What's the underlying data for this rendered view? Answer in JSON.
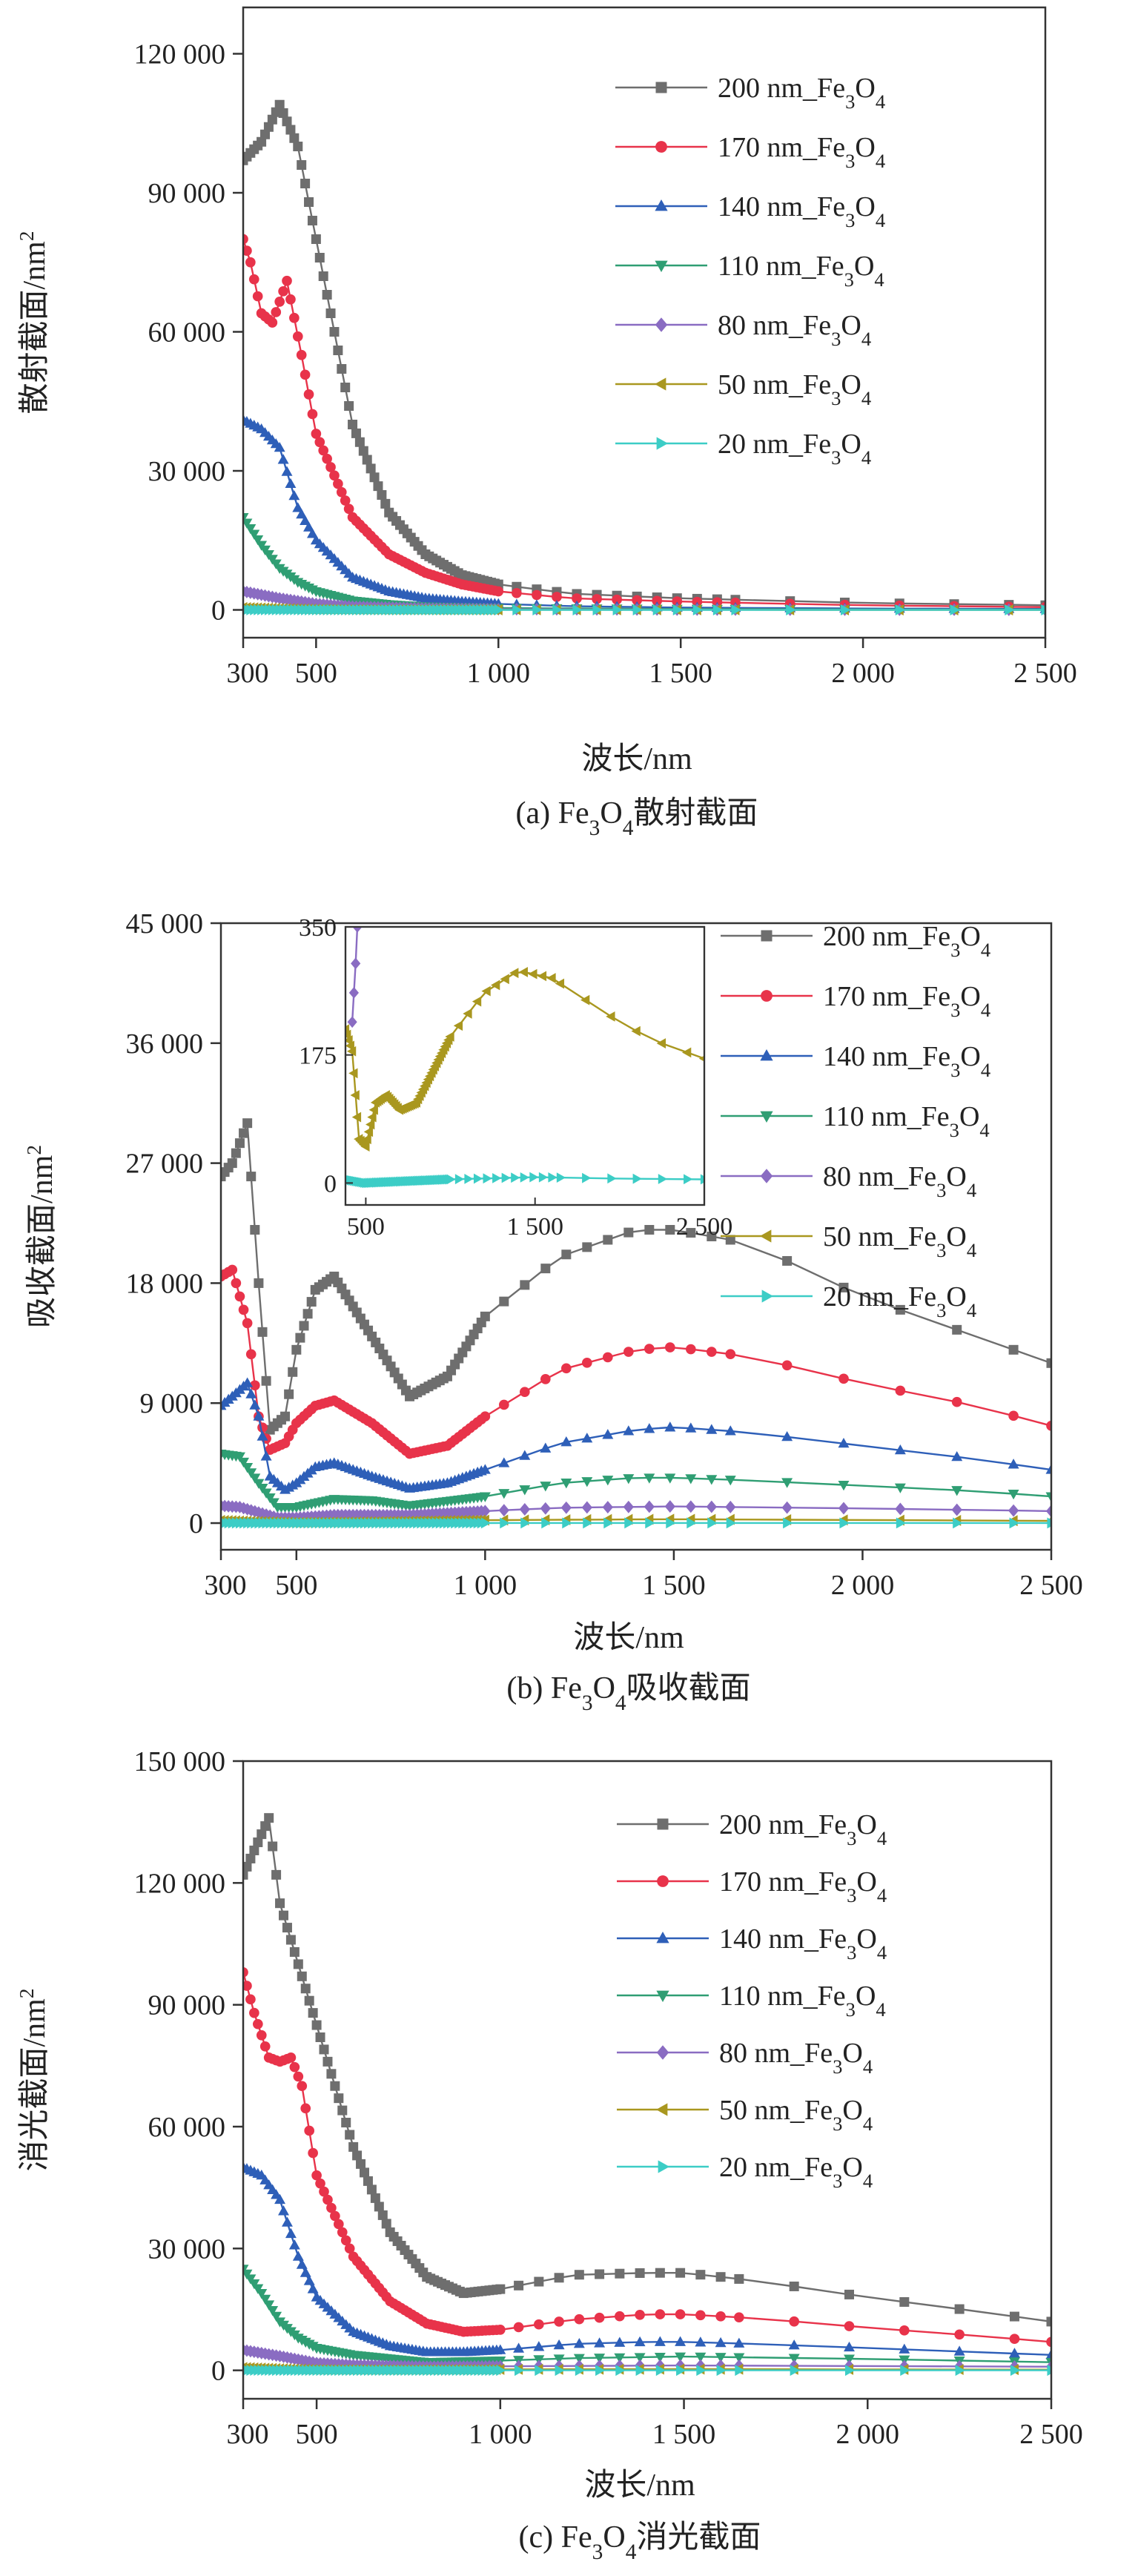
{
  "colors": {
    "200": "#6e6e6e",
    "170": "#e8334a",
    "140": "#2e5fb8",
    "110": "#2f9e73",
    "80": "#8a6cc2",
    "50": "#a9971f",
    "20": "#3ccdc6"
  },
  "legend": [
    {
      "key": "200",
      "label": "200 nm_Fe",
      "sub1": "3",
      "mid": "O",
      "sub2": "4",
      "marker": "square"
    },
    {
      "key": "170",
      "label": "170 nm_Fe",
      "sub1": "3",
      "mid": "O",
      "sub2": "4",
      "marker": "circle"
    },
    {
      "key": "140",
      "label": "140 nm_Fe",
      "sub1": "3",
      "mid": "O",
      "sub2": "4",
      "marker": "triangle-up"
    },
    {
      "key": "110",
      "label": "110 nm_Fe",
      "sub1": "3",
      "mid": "O",
      "sub2": "4",
      "marker": "triangle-down"
    },
    {
      "key": "80",
      "label": "80 nm_Fe",
      "sub1": "3",
      "mid": "O",
      "sub2": "4",
      "marker": "diamond"
    },
    {
      "key": "50",
      "label": "50 nm_Fe",
      "sub1": "3",
      "mid": "O",
      "sub2": "4",
      "marker": "triangle-left"
    },
    {
      "key": "20",
      "label": "20 nm_Fe",
      "sub1": "3",
      "mid": "O",
      "sub2": "4",
      "marker": "triangle-right"
    }
  ],
  "chart_data": [
    {
      "id": "a",
      "type": "line",
      "caption_prefix": "(a) Fe",
      "caption_sub1": "3",
      "caption_mid": "O",
      "caption_sub2": "4",
      "caption_suffix": "散射截面",
      "xlabel": "波长/nm",
      "ylabel": "散射截面/nm",
      "ylabel_sup": "2",
      "xlim": [
        300,
        2500
      ],
      "ylim": [
        -6000,
        130000
      ],
      "xticks": [
        300,
        500,
        1000,
        1500,
        2000,
        2500
      ],
      "xtick_labels": [
        "300",
        "500",
        "1 000",
        "1 500",
        "2 000",
        "2 500"
      ],
      "yticks": [
        0,
        30000,
        60000,
        90000,
        120000
      ],
      "ytick_labels": [
        "0",
        "30 000",
        "60 000",
        "90 000",
        "120 000"
      ],
      "series": [
        {
          "name": "200 nm_Fe3O4",
          "key": "200",
          "x": [
            300,
            350,
            400,
            450,
            500,
            600,
            700,
            800,
            900,
            1000,
            1200,
            1500,
            2000,
            2500
          ],
          "y": [
            97000,
            101000,
            109000,
            100000,
            80000,
            40000,
            21000,
            12000,
            7500,
            5500,
            3500,
            2500,
            1500,
            1000
          ]
        },
        {
          "name": "170 nm_Fe3O4",
          "key": "170",
          "x": [
            300,
            320,
            350,
            380,
            420,
            460,
            500,
            600,
            700,
            800,
            900,
            1000,
            1200,
            1500,
            2000,
            2500
          ],
          "y": [
            80000,
            75000,
            64000,
            62000,
            71000,
            55000,
            38000,
            20000,
            12000,
            8000,
            5500,
            4000,
            2500,
            1800,
            1000,
            600
          ]
        },
        {
          "name": "140 nm_Fe3O4",
          "key": "140",
          "x": [
            300,
            350,
            400,
            450,
            500,
            600,
            700,
            800,
            900,
            1000,
            1200,
            1500,
            2000,
            2500
          ],
          "y": [
            41000,
            39000,
            35000,
            22000,
            15000,
            7000,
            4000,
            2500,
            1800,
            1300,
            800,
            500,
            300,
            200
          ]
        },
        {
          "name": "110 nm_Fe3O4",
          "key": "110",
          "x": [
            300,
            350,
            400,
            450,
            500,
            600,
            700,
            800,
            1000,
            1500,
            2000,
            2500
          ],
          "y": [
            20000,
            14000,
            9000,
            6000,
            4000,
            2000,
            1200,
            700,
            400,
            200,
            100,
            80
          ]
        },
        {
          "name": "80 nm_Fe3O4",
          "key": "80",
          "x": [
            300,
            400,
            500,
            600,
            800,
            1000,
            1500,
            2000,
            2500
          ],
          "y": [
            4000,
            2500,
            1300,
            700,
            300,
            150,
            60,
            30,
            20
          ]
        },
        {
          "name": "50 nm_Fe3O4",
          "key": "50",
          "x": [
            300,
            400,
            500,
            700,
            1000,
            1500,
            2000,
            2500
          ],
          "y": [
            500,
            300,
            150,
            60,
            25,
            10,
            5,
            3
          ]
        },
        {
          "name": "20 nm_Fe3O4",
          "key": "20",
          "x": [
            300,
            500,
            1000,
            1500,
            2000,
            2500
          ],
          "y": [
            10,
            5,
            1,
            0,
            0,
            0
          ]
        }
      ]
    },
    {
      "id": "b",
      "type": "line",
      "caption_prefix": "(b) Fe",
      "caption_sub1": "3",
      "caption_mid": "O",
      "caption_sub2": "4",
      "caption_suffix": "吸收截面",
      "xlabel": "波长/nm",
      "ylabel": "吸收截面/nm",
      "ylabel_sup": "2",
      "xlim": [
        300,
        2500
      ],
      "ylim": [
        -2000,
        45000
      ],
      "xticks": [
        300,
        500,
        1000,
        1500,
        2000,
        2500
      ],
      "xtick_labels": [
        "300",
        "500",
        "1 000",
        "1 500",
        "2 000",
        "2 500"
      ],
      "yticks": [
        0,
        9000,
        18000,
        27000,
        36000,
        45000
      ],
      "ytick_labels": [
        "0",
        "9 000",
        "18 000",
        "27 000",
        "36 000",
        "45 000"
      ],
      "inset": {
        "xlim": [
          380,
          2500
        ],
        "ylim": [
          -30,
          350
        ],
        "xticks": [
          500,
          1500,
          2500
        ],
        "xtick_labels": [
          "500",
          "1 500",
          "2 500"
        ],
        "yticks": [
          0,
          175,
          350
        ],
        "ytick_labels": [
          "0",
          "175",
          "350"
        ],
        "series": [
          {
            "key": "50",
            "x": [
              380,
              420,
              460,
              500,
              560,
              620,
              700,
              800,
              1000,
              1200,
              1400,
              1600,
              1800,
              2000,
              2200,
              2500
            ],
            "y": [
              210,
              180,
              60,
              50,
              110,
              120,
              100,
              110,
              200,
              260,
              290,
              280,
              250,
              220,
              195,
              170
            ]
          },
          {
            "key": "20",
            "x": [
              380,
              500,
              700,
              1000,
              1500,
              2000,
              2500
            ],
            "y": [
              5,
              0,
              2,
              5,
              8,
              6,
              5
            ]
          },
          {
            "key": "80",
            "x": [
              420,
              440,
              460
            ],
            "y": [
              220,
              300,
              400
            ]
          },
          {
            "key": "200",
            "x": [
              440,
              450
            ],
            "y": [
              360,
              420
            ]
          }
        ]
      },
      "series": [
        {
          "name": "200 nm_Fe3O4",
          "key": "200",
          "x": [
            300,
            330,
            370,
            400,
            430,
            470,
            500,
            550,
            600,
            700,
            800,
            900,
            1000,
            1200,
            1400,
            1500,
            1700,
            2000,
            2300,
            2500
          ],
          "y": [
            26000,
            27000,
            30000,
            18000,
            7000,
            8000,
            13000,
            17500,
            18500,
            14000,
            9500,
            11000,
            15500,
            20000,
            22000,
            22000,
            21000,
            17000,
            14000,
            12000
          ]
        },
        {
          "name": "170 nm_Fe3O4",
          "key": "170",
          "x": [
            300,
            330,
            370,
            400,
            430,
            470,
            500,
            550,
            600,
            700,
            800,
            900,
            1000,
            1200,
            1400,
            1500,
            1700,
            2000,
            2300,
            2500
          ],
          "y": [
            18500,
            19000,
            15000,
            8000,
            5500,
            6000,
            7500,
            8800,
            9200,
            7500,
            5200,
            5800,
            8000,
            11500,
            13000,
            13200,
            12500,
            10500,
            8800,
            7300
          ]
        },
        {
          "name": "140 nm_Fe3O4",
          "key": "140",
          "x": [
            300,
            330,
            370,
            400,
            430,
            470,
            500,
            550,
            600,
            700,
            800,
            900,
            1000,
            1200,
            1400,
            1500,
            1700,
            2000,
            2300,
            2500
          ],
          "y": [
            8800,
            9500,
            10500,
            8000,
            3500,
            2500,
            3000,
            4200,
            4500,
            3500,
            2600,
            3000,
            4000,
            6000,
            7000,
            7200,
            6800,
            5800,
            4800,
            4000
          ]
        },
        {
          "name": "110 nm_Fe3O4",
          "key": "110",
          "x": [
            300,
            350,
            400,
            450,
            500,
            600,
            700,
            800,
            1000,
            1200,
            1400,
            1500,
            1700,
            2000,
            2300,
            2500
          ],
          "y": [
            5200,
            5000,
            3000,
            1200,
            1200,
            1800,
            1700,
            1300,
            2000,
            3000,
            3400,
            3400,
            3200,
            2800,
            2400,
            2000
          ]
        },
        {
          "name": "80 nm_Fe3O4",
          "key": "80",
          "x": [
            300,
            350,
            400,
            450,
            500,
            600,
            800,
            1000,
            1200,
            1500,
            2000,
            2500
          ],
          "y": [
            1300,
            1200,
            800,
            400,
            400,
            600,
            600,
            900,
            1150,
            1250,
            1100,
            900
          ]
        },
        {
          "name": "50 nm_Fe3O4",
          "key": "50",
          "x": [
            300,
            400,
            500,
            700,
            1000,
            1500,
            2000,
            2500
          ],
          "y": [
            200,
            120,
            60,
            100,
            220,
            290,
            230,
            170
          ]
        },
        {
          "name": "20 nm_Fe3O4",
          "key": "20",
          "x": [
            300,
            500,
            1000,
            1500,
            2000,
            2500
          ],
          "y": [
            5,
            2,
            5,
            8,
            6,
            5
          ]
        }
      ]
    },
    {
      "id": "c",
      "type": "line",
      "caption_prefix": "(c) Fe",
      "caption_sub1": "3",
      "caption_mid": "O",
      "caption_sub2": "4",
      "caption_suffix": "消光截面",
      "xlabel": "波长/nm",
      "ylabel": "消光截面/nm",
      "ylabel_sup": "2",
      "xlim": [
        300,
        2500
      ],
      "ylim": [
        -7000,
        150000
      ],
      "xticks": [
        300,
        500,
        1000,
        1500,
        2000,
        2500
      ],
      "xtick_labels": [
        "300",
        "500",
        "1 000",
        "1 500",
        "2 000",
        "2 500"
      ],
      "yticks": [
        0,
        30000,
        60000,
        90000,
        120000,
        150000
      ],
      "ytick_labels": [
        "0",
        "30 000",
        "60 000",
        "90 000",
        "120 000",
        "150 000"
      ],
      "series": [
        {
          "name": "200 nm_Fe3O4",
          "key": "200",
          "x": [
            300,
            330,
            370,
            400,
            450,
            500,
            600,
            700,
            800,
            900,
            1000,
            1200,
            1400,
            1500,
            1700,
            2000,
            2300,
            2500
          ],
          "y": [
            122000,
            128000,
            136000,
            115000,
            100000,
            85000,
            55000,
            34000,
            23000,
            19000,
            20000,
            23500,
            24000,
            24000,
            22000,
            18000,
            14500,
            12000
          ]
        },
        {
          "name": "170 nm_Fe3O4",
          "key": "170",
          "x": [
            300,
            330,
            370,
            400,
            430,
            460,
            500,
            600,
            700,
            800,
            900,
            1000,
            1200,
            1400,
            1500,
            1700,
            2000,
            2300,
            2500
          ],
          "y": [
            98000,
            88000,
            77000,
            76000,
            77000,
            70000,
            48000,
            28000,
            17000,
            11500,
            9500,
            10000,
            12500,
            13800,
            13800,
            12800,
            10500,
            8500,
            7000
          ]
        },
        {
          "name": "140 nm_Fe3O4",
          "key": "140",
          "x": [
            300,
            350,
            400,
            450,
            500,
            600,
            700,
            800,
            900,
            1000,
            1200,
            1400,
            1500,
            1700,
            2000,
            2500
          ],
          "y": [
            50000,
            48000,
            42000,
            28000,
            18000,
            9500,
            6000,
            4500,
            4500,
            5000,
            6500,
            7000,
            7000,
            6500,
            5500,
            3800
          ]
        },
        {
          "name": "110 nm_Fe3O4",
          "key": "110",
          "x": [
            300,
            350,
            400,
            450,
            500,
            600,
            700,
            800,
            1000,
            1200,
            1500,
            2000,
            2500
          ],
          "y": [
            25000,
            19000,
            12000,
            8000,
            5500,
            3800,
            2900,
            2000,
            2400,
            3000,
            3400,
            2800,
            2000
          ]
        },
        {
          "name": "80 nm_Fe3O4",
          "key": "80",
          "x": [
            300,
            400,
            500,
            600,
            800,
            1000,
            1500,
            2000,
            2500
          ],
          "y": [
            5000,
            3500,
            1800,
            1300,
            900,
            1000,
            1200,
            1050,
            900
          ]
        },
        {
          "name": "50 nm_Fe3O4",
          "key": "50",
          "x": [
            300,
            400,
            500,
            700,
            1000,
            1500,
            2000,
            2500
          ],
          "y": [
            700,
            400,
            200,
            160,
            240,
            300,
            230,
            170
          ]
        },
        {
          "name": "20 nm_Fe3O4",
          "key": "20",
          "x": [
            300,
            500,
            1000,
            1500,
            2000,
            2500
          ],
          "y": [
            15,
            8,
            6,
            8,
            6,
            5
          ]
        }
      ]
    }
  ]
}
